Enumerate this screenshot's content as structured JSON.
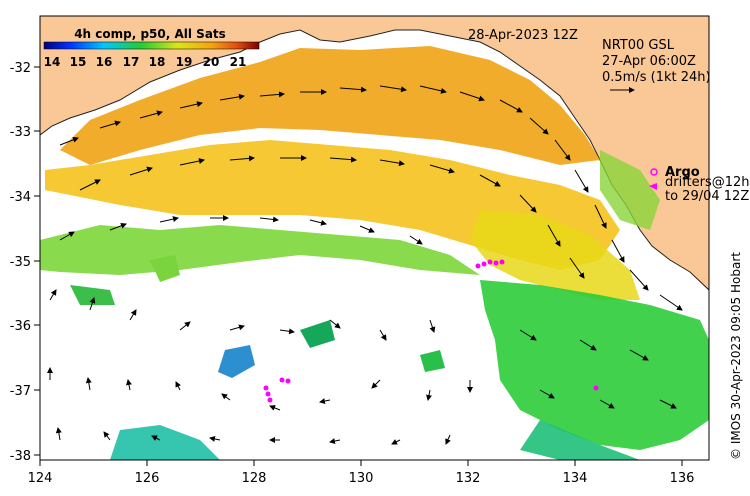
{
  "map": {
    "date_label": "28-Apr-2023 12Z",
    "product": {
      "line1": "NRT00 GSL",
      "line2": "27-Apr 06:00Z",
      "line3": "0.5m/s (1kt 24h)"
    },
    "colorbar": {
      "title": "4h comp, p50, All Sats",
      "ticks": [
        "14",
        "15",
        "16",
        "17",
        "18",
        "19",
        "20",
        "21"
      ]
    },
    "legend": {
      "argo_label": "Argo",
      "drifters_line1": "drifters@12h",
      "drifters_line2": "to 29/04 12Z"
    },
    "credit": "© IMOS 30-Apr-2023 09:05 Hobart",
    "lon_ticks": [
      "124",
      "126",
      "128",
      "130",
      "132",
      "134",
      "136"
    ],
    "lat_ticks": [
      "-32",
      "-33",
      "-34",
      "-35",
      "-36",
      "-37",
      "-38"
    ],
    "extent": {
      "lon": [
        124,
        136.5
      ],
      "lat": [
        -38.2,
        -31.3
      ]
    },
    "colors": {
      "land": "#fac796",
      "arrows": "#000000",
      "argo": "#ff00ff",
      "drifters": "#ff00ff"
    }
  }
}
